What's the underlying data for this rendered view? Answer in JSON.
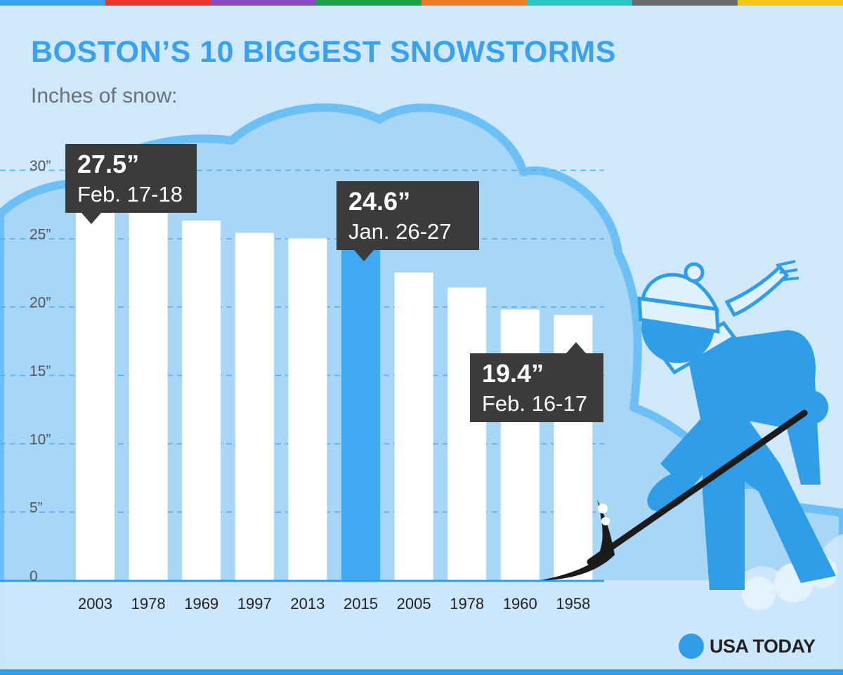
{
  "header": {
    "title": "BOSTON’S 10 BIGGEST SNOWSTORMS",
    "subtitle": "Inches of snow:"
  },
  "brand": {
    "name": "USA TODAY"
  },
  "colors": {
    "background": "#cfe9fb",
    "cloud": "#a8d6f7",
    "cloud_outline": "#6cc0f5",
    "bar": "#ffffff",
    "highlight": "#3fa9f2",
    "accent": "#2f9de8",
    "title": "#3aa0f0",
    "callout": "#3b3b3b",
    "grid": "#56aeea",
    "axis": "#2f9de8",
    "top_stripes": [
      "#3aa0f0",
      "#e8352b",
      "#8a47c4",
      "#21a04a",
      "#f07a24",
      "#29c4c4",
      "#6b6b6b",
      "#f5c518"
    ]
  },
  "chart_data": {
    "type": "bar",
    "title": "BOSTON’S 10 BIGGEST SNOWSTORMS",
    "ylabel": "Inches of snow:",
    "xlabel": "",
    "ylim": [
      0,
      30
    ],
    "yticks": [
      {
        "value": 0,
        "label": "0"
      },
      {
        "value": 5,
        "label": "5”"
      },
      {
        "value": 10,
        "label": "10”"
      },
      {
        "value": 15,
        "label": "15”"
      },
      {
        "value": 20,
        "label": "20”"
      },
      {
        "value": 25,
        "label": "25”"
      },
      {
        "value": 30,
        "label": "30”"
      }
    ],
    "grid": true,
    "categories": [
      "2003",
      "1978",
      "1969",
      "1997",
      "2013",
      "2015",
      "2005",
      "1978",
      "1960",
      "1958"
    ],
    "values": [
      27.5,
      27.1,
      26.3,
      25.4,
      25.0,
      24.6,
      22.5,
      21.4,
      19.8,
      19.4
    ],
    "highlight_index": 5,
    "annotations": [
      {
        "index": 0,
        "value": "27.5”",
        "date": "Feb. 17-18"
      },
      {
        "index": 5,
        "value": "24.6”",
        "date": "Jan. 26-27"
      },
      {
        "index": 9,
        "value": "19.4”",
        "date": "Feb. 16-17"
      }
    ]
  }
}
